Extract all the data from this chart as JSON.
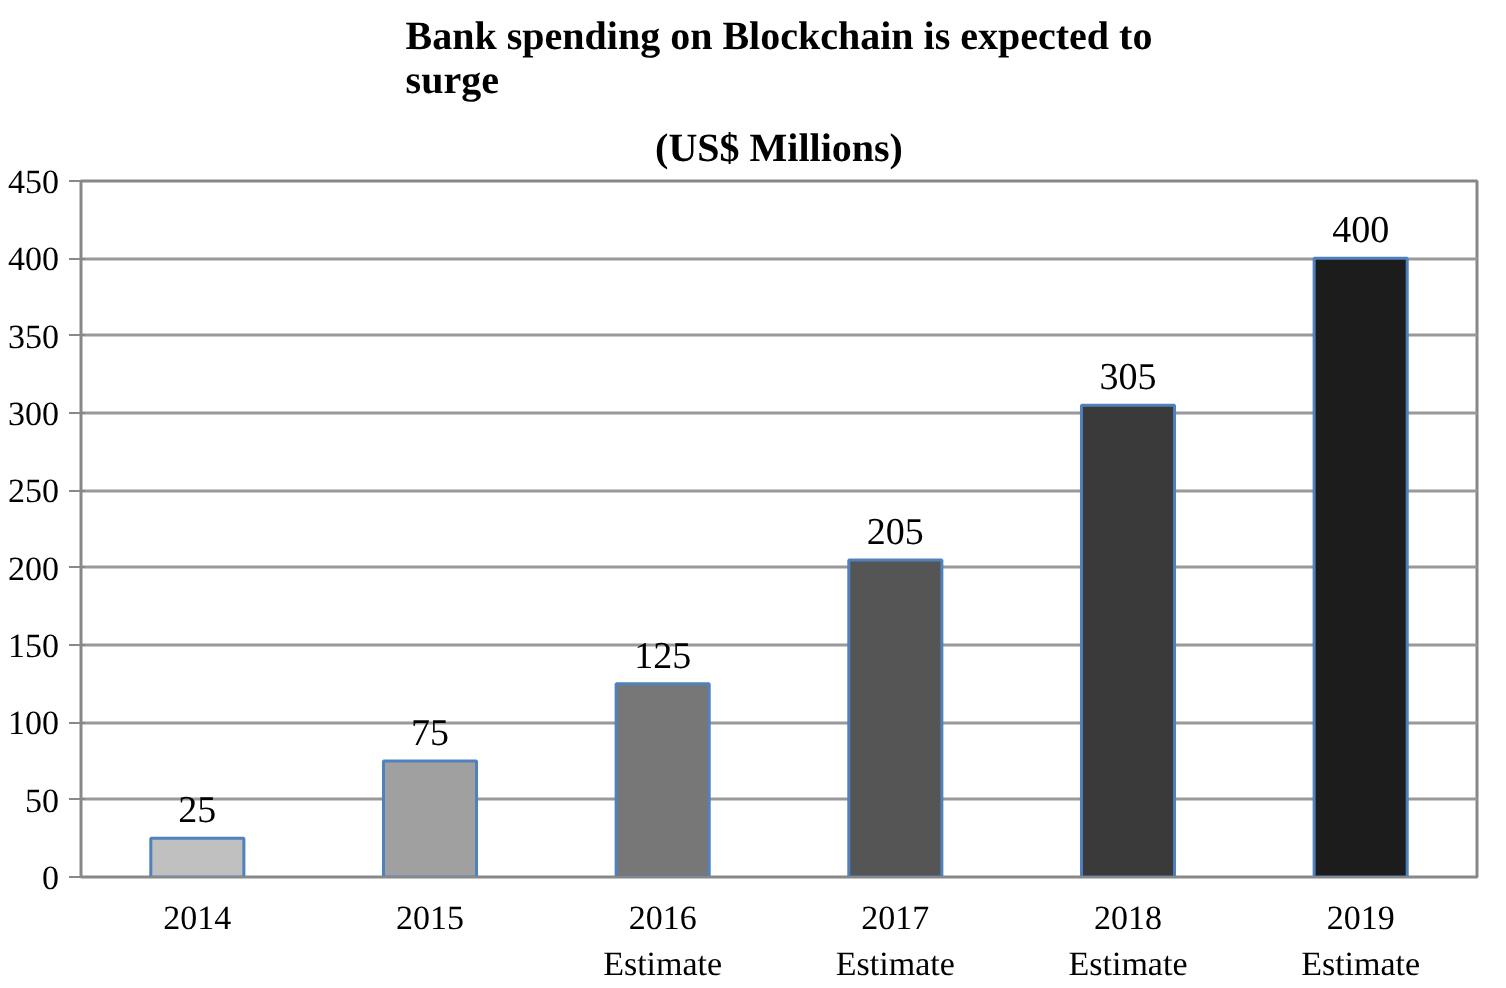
{
  "chart_data": {
    "type": "bar",
    "title": "Bank spending on Blockchain is expected to surge",
    "subtitle": "(US$ Millions)",
    "categories": [
      "2014",
      "2015",
      "2016\nEstimate",
      "2017\nEstimate",
      "2018\nEstimate",
      "2019\nEstimate"
    ],
    "values": [
      25,
      75,
      125,
      205,
      305,
      400
    ],
    "colors": [
      "#c0c0c0",
      "#a0a0a0",
      "#777777",
      "#555555",
      "#3a3a3a",
      "#1c1c1c"
    ],
    "ylim": [
      0,
      450
    ],
    "yticks": [
      0,
      50,
      100,
      150,
      200,
      250,
      300,
      350,
      400,
      450
    ],
    "grid": "y",
    "data_labels": true
  }
}
